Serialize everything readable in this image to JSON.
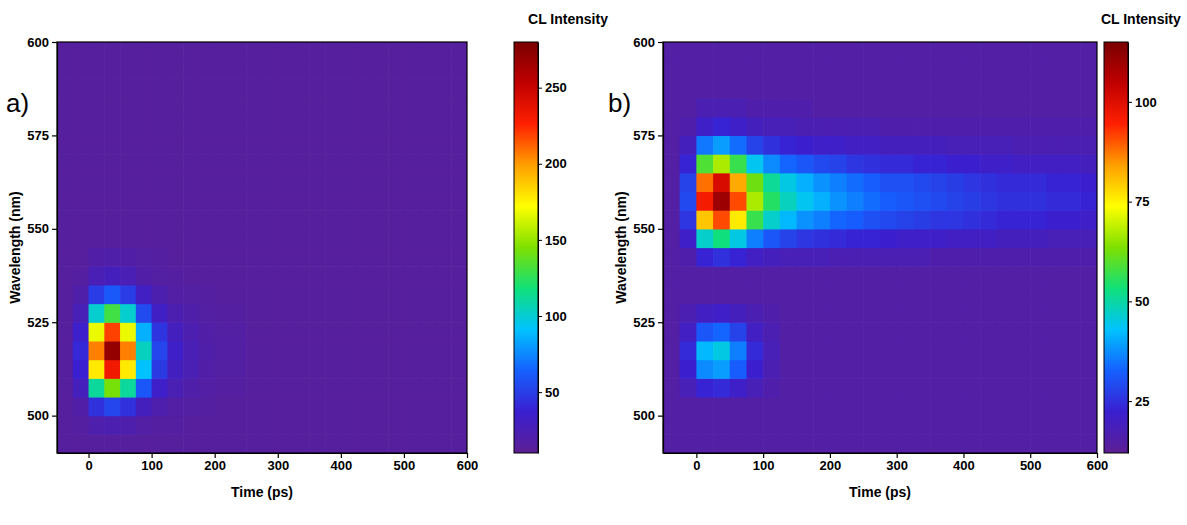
{
  "chart_data": [
    {
      "type": "heatmap",
      "label": "a)",
      "x_label": "Time (ps)",
      "y_label": "Wavelength (nm)",
      "xlim": [
        -50,
        600
      ],
      "ylim": [
        490,
        600
      ],
      "xticks": [
        0,
        100,
        200,
        300,
        400,
        500,
        600
      ],
      "yticks": [
        500,
        525,
        550,
        575,
        600
      ],
      "x_bins": [
        -50,
        -25,
        0,
        25,
        50,
        75,
        100,
        125,
        150,
        175,
        200,
        225,
        250,
        275,
        300,
        325,
        350,
        375,
        400,
        425,
        450,
        475,
        500,
        525,
        550,
        575,
        600
      ],
      "y_bins": [
        490,
        495,
        500,
        505,
        510,
        515,
        520,
        525,
        530,
        535,
        540,
        545,
        550,
        555,
        560,
        565,
        570,
        575,
        580,
        585,
        590,
        595,
        600
      ],
      "z": [
        [
          15,
          15,
          15,
          15,
          15,
          15,
          15,
          15,
          15,
          15,
          15,
          15,
          15,
          15,
          15,
          15,
          15,
          15,
          15,
          15,
          15,
          15,
          15,
          15,
          15,
          15
        ],
        [
          15,
          16,
          21,
          23,
          21,
          18,
          16,
          16,
          15,
          15,
          15,
          15,
          15,
          15,
          15,
          15,
          15,
          15,
          15,
          15,
          15,
          15,
          15,
          15,
          15,
          15
        ],
        [
          15,
          19,
          44,
          53,
          44,
          28,
          21,
          18,
          17,
          16,
          15,
          15,
          15,
          15,
          15,
          15,
          15,
          15,
          15,
          15,
          15,
          15,
          15,
          15,
          15,
          15
        ],
        [
          15,
          28,
          111,
          143,
          111,
          60,
          34,
          24,
          20,
          18,
          16,
          16,
          15,
          15,
          15,
          15,
          15,
          15,
          15,
          15,
          15,
          15,
          15,
          15,
          15,
          15
        ],
        [
          15,
          37,
          178,
          232,
          178,
          91,
          48,
          30,
          24,
          19,
          17,
          17,
          15,
          15,
          15,
          15,
          15,
          15,
          15,
          15,
          15,
          15,
          15,
          15,
          15,
          15
        ],
        [
          15,
          41,
          206,
          270,
          206,
          104,
          53,
          33,
          25,
          20,
          18,
          18,
          15,
          15,
          15,
          15,
          15,
          15,
          15,
          15,
          15,
          15,
          15,
          15,
          15,
          15
        ],
        [
          15,
          35,
          168,
          219,
          168,
          86,
          46,
          29,
          23,
          19,
          17,
          17,
          15,
          15,
          15,
          15,
          15,
          15,
          15,
          15,
          15,
          15,
          15,
          15,
          15,
          15
        ],
        [
          15,
          26,
          101,
          130,
          101,
          55,
          32,
          23,
          20,
          17,
          16,
          16,
          15,
          15,
          15,
          15,
          15,
          15,
          15,
          15,
          15,
          15,
          15,
          15,
          15,
          15
        ],
        [
          15,
          20,
          49,
          61,
          49,
          31,
          22,
          18,
          17,
          16,
          15,
          15,
          15,
          15,
          15,
          15,
          15,
          15,
          15,
          15,
          15,
          15,
          15,
          15,
          15,
          15
        ],
        [
          15,
          16,
          25,
          28,
          25,
          19,
          17,
          16,
          15,
          15,
          15,
          15,
          15,
          15,
          15,
          15,
          15,
          15,
          15,
          15,
          15,
          15,
          15,
          15,
          15,
          15
        ],
        [
          15,
          15,
          19,
          20,
          19,
          17,
          16,
          15,
          15,
          15,
          15,
          15,
          15,
          15,
          15,
          15,
          15,
          15,
          15,
          15,
          15,
          15,
          15,
          15,
          15,
          15
        ],
        [
          15,
          15,
          15,
          15,
          15,
          15,
          15,
          15,
          15,
          15,
          15,
          15,
          15,
          15,
          15,
          15,
          15,
          15,
          15,
          15,
          15,
          15,
          15,
          15,
          15,
          15
        ],
        [
          15,
          15,
          15,
          15,
          15,
          15,
          15,
          15,
          15,
          15,
          15,
          15,
          15,
          15,
          15,
          15,
          15,
          15,
          15,
          15,
          15,
          15,
          15,
          15,
          15,
          15
        ],
        [
          15,
          15,
          15,
          15,
          15,
          15,
          15,
          15,
          15,
          15,
          15,
          15,
          15,
          15,
          15,
          15,
          15,
          15,
          15,
          15,
          15,
          15,
          15,
          15,
          15,
          15
        ],
        [
          15,
          15,
          15,
          15,
          15,
          15,
          15,
          15,
          15,
          15,
          15,
          15,
          15,
          15,
          15,
          15,
          15,
          15,
          15,
          15,
          15,
          15,
          15,
          15,
          15,
          15
        ],
        [
          15,
          15,
          15,
          15,
          15,
          15,
          15,
          15,
          15,
          15,
          15,
          15,
          15,
          15,
          15,
          15,
          15,
          15,
          15,
          15,
          15,
          15,
          15,
          15,
          15,
          15
        ],
        [
          15,
          15,
          15,
          15,
          15,
          15,
          15,
          15,
          15,
          15,
          15,
          15,
          15,
          15,
          15,
          15,
          15,
          15,
          15,
          15,
          15,
          15,
          15,
          15,
          15,
          15
        ],
        [
          15,
          15,
          15,
          15,
          15,
          15,
          15,
          15,
          15,
          15,
          15,
          15,
          15,
          15,
          15,
          15,
          15,
          15,
          15,
          15,
          15,
          15,
          15,
          15,
          15,
          15
        ],
        [
          15,
          15,
          15,
          15,
          15,
          15,
          15,
          15,
          15,
          15,
          15,
          15,
          15,
          15,
          15,
          15,
          15,
          15,
          15,
          15,
          15,
          15,
          15,
          15,
          15,
          15
        ],
        [
          15,
          15,
          15,
          15,
          15,
          15,
          15,
          15,
          15,
          15,
          15,
          15,
          15,
          15,
          15,
          15,
          15,
          15,
          15,
          15,
          15,
          15,
          15,
          15,
          15,
          15
        ],
        [
          15,
          15,
          15,
          15,
          15,
          15,
          15,
          15,
          15,
          15,
          15,
          15,
          15,
          15,
          15,
          15,
          15,
          15,
          15,
          15,
          15,
          15,
          15,
          15,
          15,
          15
        ],
        [
          15,
          15,
          15,
          15,
          15,
          15,
          15,
          15,
          15,
          15,
          15,
          15,
          15,
          15,
          15,
          15,
          15,
          15,
          15,
          15,
          15,
          15,
          15,
          15,
          15,
          15
        ]
      ],
      "colorbar": {
        "title": "CL Intensity",
        "range": [
          10,
          280
        ],
        "ticks": [
          50,
          100,
          150,
          200,
          250
        ]
      }
    },
    {
      "type": "heatmap",
      "label": "b)",
      "x_label": "Time (ps)",
      "y_label": "Wavelength (nm)",
      "xlim": [
        -50,
        600
      ],
      "ylim": [
        490,
        600
      ],
      "xticks": [
        0,
        100,
        200,
        300,
        400,
        500,
        600
      ],
      "yticks": [
        500,
        525,
        550,
        575,
        600
      ],
      "x_bins": [
        -50,
        -25,
        0,
        25,
        50,
        75,
        100,
        125,
        150,
        175,
        200,
        225,
        250,
        275,
        300,
        325,
        350,
        375,
        400,
        425,
        450,
        475,
        500,
        525,
        550,
        575,
        600
      ],
      "y_bins": [
        490,
        495,
        500,
        505,
        510,
        515,
        520,
        525,
        530,
        535,
        540,
        545,
        550,
        555,
        560,
        565,
        570,
        575,
        580,
        585,
        590,
        595,
        600
      ],
      "z": [
        [
          15,
          15,
          15,
          15,
          15,
          15,
          15,
          15,
          15,
          15,
          15,
          15,
          15,
          15,
          15,
          15,
          15,
          15,
          15,
          15,
          15,
          15,
          15,
          15,
          15,
          15
        ],
        [
          15,
          15,
          15,
          15,
          15,
          15,
          15,
          15,
          15,
          15,
          15,
          15,
          15,
          15,
          15,
          15,
          15,
          15,
          15,
          15,
          15,
          15,
          15,
          15,
          15,
          15
        ],
        [
          15,
          15,
          15,
          15,
          15,
          15,
          15,
          15,
          15,
          15,
          15,
          15,
          15,
          15,
          15,
          15,
          15,
          15,
          15,
          15,
          15,
          15,
          15,
          15,
          15,
          15
        ],
        [
          15,
          18,
          23,
          24,
          21,
          18,
          16,
          15,
          15,
          15,
          15,
          15,
          15,
          15,
          15,
          15,
          15,
          15,
          15,
          15,
          15,
          15,
          15,
          15,
          15,
          15
        ],
        [
          15,
          22,
          37,
          39,
          32,
          22,
          17,
          15,
          15,
          15,
          15,
          15,
          15,
          15,
          15,
          15,
          15,
          15,
          15,
          15,
          15,
          15,
          15,
          15,
          15,
          15
        ],
        [
          15,
          24,
          42,
          45,
          36,
          24,
          18,
          15,
          15,
          15,
          15,
          15,
          15,
          15,
          15,
          15,
          15,
          15,
          15,
          15,
          15,
          15,
          15,
          15,
          15,
          15
        ],
        [
          15,
          20,
          31,
          33,
          28,
          20,
          17,
          15,
          15,
          15,
          15,
          15,
          15,
          15,
          15,
          15,
          15,
          15,
          15,
          15,
          15,
          15,
          15,
          15,
          15,
          15
        ],
        [
          15,
          17,
          20,
          21,
          19,
          17,
          16,
          15,
          15,
          15,
          15,
          15,
          15,
          15,
          15,
          15,
          15,
          15,
          15,
          15,
          15,
          15,
          15,
          15,
          15,
          15
        ],
        [
          15,
          15,
          15,
          15,
          15,
          15,
          15,
          15,
          15,
          15,
          15,
          15,
          15,
          15,
          15,
          15,
          15,
          15,
          15,
          15,
          15,
          15,
          15,
          15,
          15,
          15
        ],
        [
          15,
          15,
          15,
          15,
          15,
          15,
          15,
          15,
          15,
          15,
          15,
          15,
          15,
          15,
          15,
          15,
          15,
          15,
          15,
          15,
          15,
          15,
          15,
          15,
          15,
          15
        ],
        [
          15,
          16,
          23,
          25,
          23,
          20,
          19,
          18,
          18,
          18,
          17,
          17,
          17,
          17,
          17,
          17,
          16,
          16,
          16,
          16,
          16,
          16,
          16,
          16,
          16,
          16
        ],
        [
          15,
          21,
          47,
          53,
          45,
          36,
          31,
          28,
          26,
          25,
          24,
          23,
          23,
          22,
          21,
          21,
          21,
          20,
          20,
          20,
          19,
          19,
          19,
          18,
          18,
          18
        ],
        [
          15,
          26,
          80,
          91,
          76,
          57,
          47,
          42,
          38,
          36,
          33,
          32,
          30,
          29,
          28,
          27,
          26,
          26,
          25,
          24,
          23,
          23,
          23,
          22,
          22,
          21
        ],
        [
          15,
          29,
          96,
          110,
          91,
          67,
          55,
          48,
          44,
          41,
          38,
          36,
          34,
          32,
          31,
          30,
          29,
          28,
          27,
          26,
          25,
          25,
          25,
          24,
          24,
          23
        ],
        [
          15,
          28,
          88,
          101,
          83,
          62,
          51,
          45,
          41,
          38,
          36,
          34,
          32,
          30,
          30,
          29,
          28,
          27,
          26,
          25,
          24,
          24,
          24,
          23,
          23,
          22
        ],
        [
          15,
          23,
          59,
          67,
          57,
          44,
          37,
          33,
          31,
          29,
          28,
          26,
          25,
          24,
          24,
          23,
          23,
          22,
          22,
          21,
          21,
          20,
          20,
          20,
          20,
          19
        ],
        [
          15,
          19,
          35,
          39,
          34,
          28,
          25,
          23,
          22,
          21,
          21,
          20,
          20,
          19,
          19,
          19,
          19,
          18,
          18,
          18,
          18,
          17,
          17,
          17,
          17,
          17
        ],
        [
          15,
          16,
          21,
          23,
          21,
          19,
          18,
          18,
          17,
          17,
          17,
          17,
          17,
          16,
          16,
          16,
          16,
          16,
          16,
          16,
          16,
          16,
          16,
          16,
          16,
          16
        ],
        [
          15,
          15,
          17,
          17,
          17,
          16,
          16,
          16,
          16,
          15,
          15,
          15,
          15,
          15,
          15,
          15,
          15,
          15,
          15,
          15,
          15,
          15,
          15,
          15,
          15,
          15
        ],
        [
          15,
          15,
          15,
          15,
          15,
          15,
          15,
          15,
          15,
          15,
          15,
          15,
          15,
          15,
          15,
          15,
          15,
          15,
          15,
          15,
          15,
          15,
          15,
          15,
          15,
          15
        ],
        [
          15,
          15,
          15,
          15,
          15,
          15,
          15,
          15,
          15,
          15,
          15,
          15,
          15,
          15,
          15,
          15,
          15,
          15,
          15,
          15,
          15,
          15,
          15,
          15,
          15,
          15
        ],
        [
          15,
          15,
          15,
          15,
          15,
          15,
          15,
          15,
          15,
          15,
          15,
          15,
          15,
          15,
          15,
          15,
          15,
          15,
          15,
          15,
          15,
          15,
          15,
          15,
          15,
          15
        ]
      ],
      "colorbar": {
        "title": "CL Intensity",
        "range": [
          12,
          115
        ],
        "ticks": [
          25,
          50,
          75,
          100
        ]
      }
    }
  ]
}
